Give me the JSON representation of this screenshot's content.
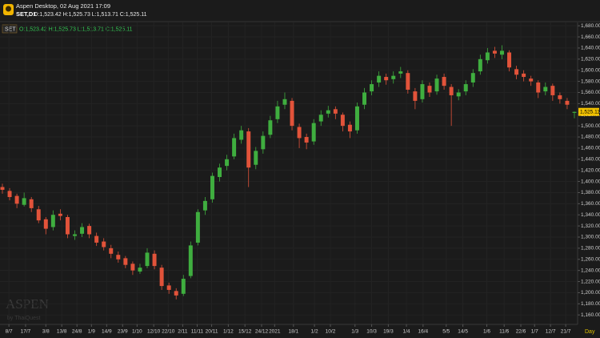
{
  "app": {
    "title": "Aspen Desktop, 02 Aug 2021 17:09",
    "symbol": "SET,D1",
    "ohlc": "O:1,523.42 H:1,525.73 L:1,513.71 C:1,525.11",
    "pane_symbol": "SET",
    "pane_ohlc": "O:1,523.42 H:1,525.73 L:1,513.71 C:1,525.11",
    "watermark": "ASPEN",
    "watermark_sub": "by ThaiQuest",
    "timeframe": "Day"
  },
  "chart_data": {
    "type": "candlestick",
    "up_color": "#3fae3f",
    "down_color": "#e2533a",
    "grid": true,
    "last_label": "1,525.11",
    "open": [
      1390,
      1383,
      1374,
      1358,
      1368,
      1350,
      1332,
      1318,
      1342,
      1336,
      1302,
      1306,
      1320,
      1302,
      1292,
      1280,
      1268,
      1262,
      1252,
      1238,
      1248,
      1270,
      1245,
      1213,
      1203,
      1198,
      1230,
      1290,
      1348,
      1368,
      1408,
      1428,
      1445,
      1475,
      1490,
      1430,
      1458,
      1484,
      1512,
      1538,
      1545,
      1498,
      1480,
      1472,
      1508,
      1522,
      1530,
      1520,
      1502,
      1492,
      1538,
      1562,
      1578,
      1588,
      1584,
      1594,
      1595,
      1562,
      1548,
      1572,
      1562,
      1588,
      1570,
      1553,
      1562,
      1578,
      1598,
      1618,
      1635,
      1628,
      1632,
      1602,
      1594,
      1585,
      1578,
      1562,
      1572,
      1555,
      1545,
      1523.42
    ],
    "high": [
      1396,
      1388,
      1378,
      1380,
      1372,
      1356,
      1336,
      1348,
      1350,
      1340,
      1312,
      1325,
      1324,
      1308,
      1298,
      1286,
      1274,
      1266,
      1256,
      1252,
      1280,
      1276,
      1250,
      1218,
      1208,
      1232,
      1292,
      1350,
      1372,
      1416,
      1432,
      1448,
      1486,
      1500,
      1496,
      1462,
      1490,
      1518,
      1545,
      1560,
      1550,
      1504,
      1486,
      1512,
      1528,
      1536,
      1535,
      1524,
      1508,
      1542,
      1568,
      1582,
      1598,
      1594,
      1598,
      1606,
      1600,
      1568,
      1582,
      1578,
      1592,
      1594,
      1575,
      1566,
      1582,
      1602,
      1628,
      1640,
      1642,
      1645,
      1636,
      1608,
      1600,
      1590,
      1582,
      1578,
      1576,
      1560,
      1550,
      1525.73
    ],
    "low": [
      1378,
      1366,
      1352,
      1355,
      1345,
      1325,
      1305,
      1312,
      1330,
      1298,
      1295,
      1300,
      1298,
      1284,
      1276,
      1262,
      1254,
      1244,
      1232,
      1234,
      1244,
      1242,
      1205,
      1198,
      1188,
      1194,
      1226,
      1285,
      1340,
      1362,
      1400,
      1420,
      1440,
      1468,
      1390,
      1422,
      1450,
      1478,
      1505,
      1530,
      1492,
      1460,
      1458,
      1466,
      1500,
      1515,
      1512,
      1490,
      1478,
      1486,
      1530,
      1555,
      1570,
      1574,
      1576,
      1586,
      1558,
      1530,
      1542,
      1552,
      1556,
      1565,
      1500,
      1546,
      1555,
      1570,
      1592,
      1612,
      1622,
      1620,
      1598,
      1584,
      1580,
      1572,
      1550,
      1555,
      1545,
      1540,
      1530,
      1513.71
    ],
    "close": [
      1385,
      1372,
      1360,
      1370,
      1352,
      1330,
      1315,
      1340,
      1338,
      1305,
      1305,
      1318,
      1305,
      1290,
      1282,
      1270,
      1260,
      1250,
      1240,
      1245,
      1272,
      1248,
      1212,
      1205,
      1195,
      1225,
      1285,
      1345,
      1365,
      1410,
      1425,
      1440,
      1478,
      1492,
      1425,
      1455,
      1482,
      1510,
      1535,
      1548,
      1500,
      1478,
      1470,
      1505,
      1520,
      1528,
      1522,
      1500,
      1490,
      1535,
      1560,
      1575,
      1590,
      1582,
      1590,
      1598,
      1565,
      1545,
      1575,
      1560,
      1585,
      1572,
      1555,
      1560,
      1575,
      1595,
      1620,
      1632,
      1630,
      1635,
      1605,
      1592,
      1588,
      1580,
      1560,
      1570,
      1555,
      1548,
      1538,
      1525.11
    ],
    "xlim": [
      0,
      79
    ],
    "xticks": [
      {
        "value": 0.9,
        "label": "8/7"
      },
      {
        "value": 3.2,
        "label": "17/7"
      },
      {
        "value": 6.0,
        "label": "3/8"
      },
      {
        "value": 8.2,
        "label": "13/8"
      },
      {
        "value": 10.3,
        "label": "24/8"
      },
      {
        "value": 12.3,
        "label": "1/9"
      },
      {
        "value": 14.4,
        "label": "14/9"
      },
      {
        "value": 16.6,
        "label": "23/9"
      },
      {
        "value": 18.6,
        "label": "1/10"
      },
      {
        "value": 20.9,
        "label": "12/10"
      },
      {
        "value": 22.9,
        "label": "22/10"
      },
      {
        "value": 24.9,
        "label": "2/11"
      },
      {
        "value": 26.9,
        "label": "11/11"
      },
      {
        "value": 28.9,
        "label": "20/11"
      },
      {
        "value": 31.2,
        "label": "1/12"
      },
      {
        "value": 33.5,
        "label": "15/12"
      },
      {
        "value": 35.8,
        "label": "24/12"
      },
      {
        "value": 37.6,
        "label": "2021"
      },
      {
        "value": 40.2,
        "label": "18/1"
      },
      {
        "value": 43.1,
        "label": "1/2"
      },
      {
        "value": 45.3,
        "label": "10/2"
      },
      {
        "value": 48.7,
        "label": "1/3"
      },
      {
        "value": 51.0,
        "label": "10/3"
      },
      {
        "value": 53.3,
        "label": "19/3"
      },
      {
        "value": 55.8,
        "label": "1/4"
      },
      {
        "value": 58.1,
        "label": "16/4"
      },
      {
        "value": 61.3,
        "label": "5/5"
      },
      {
        "value": 63.6,
        "label": "14/5"
      },
      {
        "value": 66.9,
        "label": "1/6"
      },
      {
        "value": 69.3,
        "label": "11/6"
      },
      {
        "value": 71.6,
        "label": "22/6"
      },
      {
        "value": 73.5,
        "label": "1/7"
      },
      {
        "value": 75.7,
        "label": "12/7"
      },
      {
        "value": 77.8,
        "label": "21/7"
      }
    ],
    "ylim": [
      1143,
      1686
    ],
    "yticks": [
      {
        "value": 1160,
        "label": "1,160.00"
      },
      {
        "value": 1180,
        "label": "1,180.00"
      },
      {
        "value": 1200,
        "label": "1,200.00"
      },
      {
        "value": 1220,
        "label": "1,220.00"
      },
      {
        "value": 1240,
        "label": "1,240.00"
      },
      {
        "value": 1260,
        "label": "1,260.00"
      },
      {
        "value": 1280,
        "label": "1,280.00"
      },
      {
        "value": 1300,
        "label": "1,300.00"
      },
      {
        "value": 1320,
        "label": "1,320.00"
      },
      {
        "value": 1340,
        "label": "1,340.00"
      },
      {
        "value": 1360,
        "label": "1,360.00"
      },
      {
        "value": 1380,
        "label": "1,380.00"
      },
      {
        "value": 1400,
        "label": "1,400.00"
      },
      {
        "value": 1420,
        "label": "1,420.00"
      },
      {
        "value": 1440,
        "label": "1,440.00"
      },
      {
        "value": 1460,
        "label": "1,460.00"
      },
      {
        "value": 1480,
        "label": "1,480.00"
      },
      {
        "value": 1500,
        "label": "1,500.00"
      },
      {
        "value": 1520,
        "label": "1,520.00"
      },
      {
        "value": 1540,
        "label": "1,540.00"
      },
      {
        "value": 1560,
        "label": "1,560.00"
      },
      {
        "value": 1580,
        "label": "1,580.00"
      },
      {
        "value": 1600,
        "label": "1,600.00"
      },
      {
        "value": 1620,
        "label": "1,620.00"
      },
      {
        "value": 1640,
        "label": "1,640.00"
      },
      {
        "value": 1660,
        "label": "1,660.00"
      },
      {
        "value": 1680,
        "label": "1,680.00"
      }
    ]
  }
}
